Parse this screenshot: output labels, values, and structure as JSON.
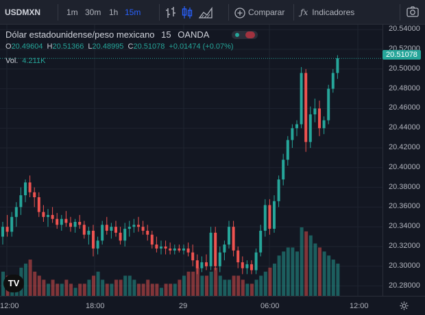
{
  "toolbar": {
    "symbol": "USDMXN",
    "intervals": [
      "1m",
      "30m",
      "1h",
      "15m"
    ],
    "active_interval": "15m",
    "compare_label": "Comparar",
    "indicators_label": "Indicadores"
  },
  "legend": {
    "title": "Dólar estadounidense/peso mexicano",
    "interval": "15",
    "source": "OANDA",
    "o_label": "O",
    "o": "20.49604",
    "h_label": "H",
    "h": "20.51366",
    "l_label": "L",
    "l": "20.48995",
    "c_label": "C",
    "c": "20.51078",
    "change": "+0.01474 (+0.07%)",
    "vol_label": "Vol.",
    "vol": "4.211K"
  },
  "colors": {
    "up": "#26a69a",
    "down": "#ef5350",
    "background": "#131722"
  },
  "icons": [
    "bar-chart-icon",
    "candles-icon",
    "area-chart-icon",
    "plus-circle-icon",
    "fx-icon",
    "camera-icon",
    "gear-icon",
    "tradingview-logo"
  ],
  "current_price": "20.51078",
  "y_ticks": [
    "20.54000",
    "20.52000",
    "20.50000",
    "20.48000",
    "20.46000",
    "20.44000",
    "20.42000",
    "20.40000",
    "20.38000",
    "20.36000",
    "20.34000",
    "20.32000",
    "20.30000",
    "20.28000"
  ],
  "x_ticks": [
    "12:00",
    "18:00",
    "29",
    "06:00",
    "12:00"
  ],
  "chart_data": {
    "type": "candlestick",
    "title": "",
    "ylim": [
      20.27,
      20.545
    ],
    "series": [
      {
        "name": "Dólar estadounidense/peso mexicano",
        "ohlc": [
          [
            20.33,
            20.345,
            20.322,
            20.34
          ],
          [
            20.34,
            20.352,
            20.33,
            20.335
          ],
          [
            20.335,
            20.355,
            20.33,
            20.35
          ],
          [
            20.35,
            20.365,
            20.34,
            20.36
          ],
          [
            20.36,
            20.38,
            20.352,
            20.372
          ],
          [
            20.372,
            20.388,
            20.365,
            20.385
          ],
          [
            20.385,
            20.392,
            20.37,
            20.375
          ],
          [
            20.375,
            20.38,
            20.36,
            20.37
          ],
          [
            20.37,
            20.375,
            20.35,
            20.355
          ],
          [
            20.355,
            20.362,
            20.345,
            20.35
          ],
          [
            20.35,
            20.358,
            20.34,
            20.352
          ],
          [
            20.352,
            20.36,
            20.344,
            20.348
          ],
          [
            20.348,
            20.354,
            20.338,
            20.342
          ],
          [
            20.342,
            20.352,
            20.336,
            20.348
          ],
          [
            20.348,
            20.356,
            20.34,
            20.344
          ],
          [
            20.344,
            20.35,
            20.335,
            20.34
          ],
          [
            20.34,
            20.348,
            20.334,
            20.345
          ],
          [
            20.345,
            20.352,
            20.338,
            20.342
          ],
          [
            20.342,
            20.346,
            20.328,
            20.332
          ],
          [
            20.332,
            20.34,
            20.322,
            20.336
          ],
          [
            20.336,
            20.342,
            20.31,
            20.318
          ],
          [
            20.318,
            20.33,
            20.312,
            20.326
          ],
          [
            20.326,
            20.346,
            20.322,
            20.342
          ],
          [
            20.342,
            20.35,
            20.332,
            20.336
          ],
          [
            20.336,
            20.344,
            20.328,
            20.34
          ],
          [
            20.34,
            20.346,
            20.33,
            20.334
          ],
          [
            20.334,
            20.34,
            20.322,
            20.326
          ],
          [
            20.326,
            20.344,
            20.32,
            20.338
          ],
          [
            20.338,
            20.346,
            20.33,
            20.34
          ],
          [
            20.34,
            20.348,
            20.334,
            20.342
          ],
          [
            20.342,
            20.35,
            20.335,
            20.34
          ],
          [
            20.34,
            20.346,
            20.332,
            20.336
          ],
          [
            20.336,
            20.342,
            20.326,
            20.332
          ],
          [
            20.332,
            20.336,
            20.318,
            20.322
          ],
          [
            20.322,
            20.33,
            20.314,
            20.318
          ],
          [
            20.318,
            20.326,
            20.312,
            20.32
          ],
          [
            20.32,
            20.326,
            20.312,
            20.318
          ],
          [
            20.318,
            20.324,
            20.312,
            20.316
          ],
          [
            20.316,
            20.322,
            20.312,
            20.318
          ],
          [
            20.318,
            20.322,
            20.314,
            20.316
          ],
          [
            20.316,
            20.322,
            20.312,
            20.318
          ],
          [
            20.318,
            20.324,
            20.31,
            20.314
          ],
          [
            20.314,
            20.322,
            20.3,
            20.306
          ],
          [
            20.306,
            20.312,
            20.292,
            20.298
          ],
          [
            20.298,
            20.31,
            20.294,
            20.304
          ],
          [
            20.304,
            20.312,
            20.296,
            20.3
          ],
          [
            20.3,
            20.34,
            20.296,
            20.334
          ],
          [
            20.334,
            20.34,
            20.296,
            20.3
          ],
          [
            20.3,
            20.32,
            20.294,
            20.314
          ],
          [
            20.314,
            20.326,
            20.306,
            20.322
          ],
          [
            20.322,
            20.346,
            20.318,
            20.34
          ],
          [
            20.34,
            20.346,
            20.31,
            20.316
          ],
          [
            20.316,
            20.32,
            20.298,
            20.304
          ],
          [
            20.304,
            20.31,
            20.292,
            20.298
          ],
          [
            20.298,
            20.306,
            20.292,
            20.302
          ],
          [
            20.302,
            20.306,
            20.292,
            20.296
          ],
          [
            20.296,
            20.318,
            20.292,
            20.314
          ],
          [
            20.314,
            20.342,
            20.31,
            20.336
          ],
          [
            20.336,
            20.368,
            20.33,
            20.362
          ],
          [
            20.362,
            20.368,
            20.332,
            20.338
          ],
          [
            20.338,
            20.372,
            20.334,
            20.366
          ],
          [
            20.366,
            20.392,
            20.36,
            20.388
          ],
          [
            20.388,
            20.414,
            20.382,
            20.408
          ],
          [
            20.408,
            20.432,
            20.402,
            20.428
          ],
          [
            20.428,
            20.444,
            20.42,
            20.44
          ],
          [
            20.44,
            20.448,
            20.432,
            20.444
          ],
          [
            20.444,
            20.502,
            20.44,
            20.496
          ],
          [
            20.496,
            20.5,
            20.416,
            20.426
          ],
          [
            20.426,
            20.462,
            20.42,
            20.454
          ],
          [
            20.454,
            20.47,
            20.446,
            20.46
          ],
          [
            20.46,
            20.468,
            20.432,
            20.44
          ],
          [
            20.44,
            20.452,
            20.434,
            20.448
          ],
          [
            20.448,
            20.484,
            20.444,
            20.48
          ],
          [
            20.48,
            20.5,
            20.476,
            20.496
          ],
          [
            20.496,
            20.514,
            20.49,
            20.511
          ]
        ]
      },
      {
        "name": "Vol.",
        "values": [
          6,
          5,
          4,
          5,
          7,
          8,
          9,
          6,
          5,
          4,
          3,
          4,
          3,
          3,
          4,
          3,
          2,
          3,
          3,
          4,
          5,
          6,
          4,
          3,
          3,
          4,
          4,
          5,
          5,
          4,
          3,
          3,
          4,
          3,
          3,
          2,
          3,
          3,
          3,
          4,
          5,
          6,
          6,
          7,
          5,
          5,
          6,
          7,
          5,
          4,
          4,
          5,
          5,
          4,
          3,
          3,
          4,
          5,
          6,
          7,
          8,
          10,
          11,
          12,
          12,
          11,
          17,
          16,
          15,
          13,
          12,
          11,
          10,
          9,
          8
        ]
      }
    ]
  }
}
